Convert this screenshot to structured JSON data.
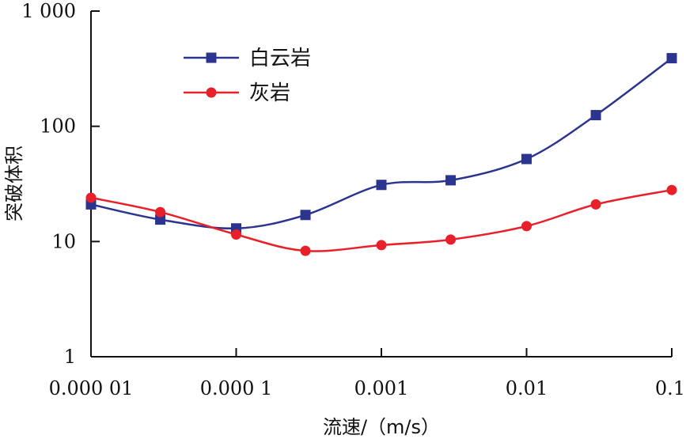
{
  "chart_data": {
    "type": "line",
    "x_scale": "log",
    "y_scale": "log",
    "x": [
      1e-05,
      3e-05,
      0.0001,
      0.0003,
      0.001,
      0.003,
      0.01,
      0.03,
      0.1
    ],
    "xlim": [
      1e-05,
      0.1
    ],
    "ylim": [
      1,
      1000
    ],
    "x_ticks": [
      1e-05,
      0.0001,
      0.001,
      0.01,
      0.1
    ],
    "x_tick_labels": [
      "0.000 01",
      "0.000 1",
      "0.001",
      "0.01",
      "0.1"
    ],
    "y_ticks": [
      1,
      10,
      100,
      1000
    ],
    "y_tick_labels": [
      "1",
      "10",
      "100",
      "1 000"
    ],
    "xlabel": "流速/（m/s）",
    "ylabel": "突破体积",
    "title": "",
    "grid": false,
    "legend_position": "top-left",
    "series": [
      {
        "name": "白云岩",
        "color": "#2b3590",
        "marker": "square",
        "values": [
          21,
          15.5,
          13,
          17,
          31,
          34,
          52,
          125,
          390
        ]
      },
      {
        "name": "灰岩",
        "color": "#e8202a",
        "marker": "circle",
        "values": [
          24,
          18,
          11.5,
          8.3,
          9.3,
          10.4,
          13.6,
          21,
          28
        ]
      }
    ]
  }
}
